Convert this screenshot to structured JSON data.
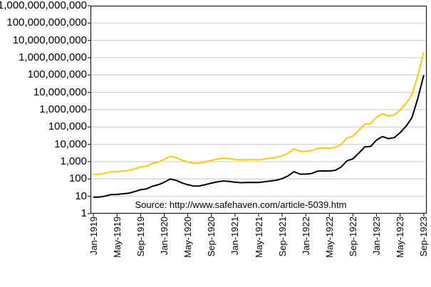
{
  "page": {
    "background": "#ffffff"
  },
  "source_note": "Source: http://www.safehaven.com/article-5039.htm",
  "chart_data": {
    "type": "line",
    "title": "",
    "xlabel": "",
    "ylabel": "",
    "y_scale": "log10",
    "ylim": [
      1,
      1000000000000
    ],
    "grid": "horizontal",
    "legend": "none",
    "plot_bg": "#ffffff",
    "gridline_color": "#c8c8c8",
    "axis_color": "#000000",
    "y_tick_labels": [
      "1",
      "10",
      "100",
      "1,000",
      "10,000",
      "100,000",
      "1,000,000",
      "10,000,000",
      "100,000,000",
      "1,000,000,000",
      "10,000,000,000",
      "100,000,000,000",
      "1,000,000,000,000"
    ],
    "x_tick_labels": [
      "Jan-1919",
      "May-1919",
      "Sep-1919",
      "Jan-1920",
      "May-1920",
      "Sep-1920",
      "Jan-1921",
      "May-1921",
      "Sep-1921",
      "Jan-1922",
      "May-1922",
      "Sep-1922",
      "Jan-1923",
      "May-1923",
      "Sep-1923"
    ],
    "x_tick_interval": 4,
    "x_months": [
      "Jan-1919",
      "Feb-1919",
      "Mar-1919",
      "Apr-1919",
      "May-1919",
      "Jun-1919",
      "Jul-1919",
      "Aug-1919",
      "Sep-1919",
      "Oct-1919",
      "Nov-1919",
      "Dec-1919",
      "Jan-1920",
      "Feb-1920",
      "Mar-1920",
      "Apr-1920",
      "May-1920",
      "Jun-1920",
      "Jul-1920",
      "Aug-1920",
      "Sep-1920",
      "Oct-1920",
      "Nov-1920",
      "Dec-1920",
      "Jan-1921",
      "Feb-1921",
      "Mar-1921",
      "Apr-1921",
      "May-1921",
      "Jun-1921",
      "Jul-1921",
      "Aug-1921",
      "Sep-1921",
      "Oct-1921",
      "Nov-1921",
      "Dec-1921",
      "Jan-1922",
      "Feb-1922",
      "Mar-1922",
      "Apr-1922",
      "May-1922",
      "Jun-1922",
      "Jul-1922",
      "Aug-1922",
      "Sep-1922",
      "Oct-1922",
      "Nov-1922",
      "Dec-1922",
      "Jan-1923",
      "Feb-1923",
      "Mar-1923",
      "Apr-1923",
      "May-1923",
      "Jun-1923",
      "Jul-1923",
      "Aug-1923",
      "Sep-1923"
    ],
    "series": [
      {
        "name": "yellow-line",
        "color": "#FFCC00",
        "values": [
          184,
          188,
          215,
          260,
          267,
          289,
          312,
          389,
          498,
          554,
          792,
          967,
          1340,
          2048,
          1734,
          1232,
          961,
          808,
          816,
          986,
          1197,
          1410,
          1596,
          1509,
          1342,
          1267,
          1292,
          1313,
          1288,
          1434,
          1585,
          1742,
          2168,
          3105,
          5434,
          3965,
          3965,
          4295,
          5874,
          6015,
          5996,
          6554,
          10194,
          23452,
          30300,
          65747,
          148475,
          156871,
          371481,
          577065,
          437997,
          505898,
          985339,
          2273617,
          7304926,
          95500000,
          2043400000
        ]
      },
      {
        "name": "black-line",
        "color": "#000000",
        "values": [
          8.9,
          9.1,
          10.4,
          12.6,
          12.9,
          14.0,
          15.1,
          18.8,
          24.1,
          26.8,
          38.3,
          46.8,
          64.8,
          99.1,
          83.9,
          59.6,
          46.5,
          39.1,
          39.5,
          47.7,
          57.9,
          68.2,
          77.2,
          73.0,
          64.9,
          61.3,
          62.5,
          63.5,
          62.3,
          69.4,
          76.7,
          84.3,
          104.9,
          150.2,
          262.9,
          191.8,
          191.8,
          207.8,
          284.2,
          291.0,
          290.1,
          317.1,
          493.2,
          1134.6,
          1465.9,
          3180.8,
          7183.1,
          7589.3,
          17972,
          27918,
          21190,
          24475,
          47670,
          109996,
          353412,
          4620455,
          98860000
        ]
      }
    ]
  }
}
